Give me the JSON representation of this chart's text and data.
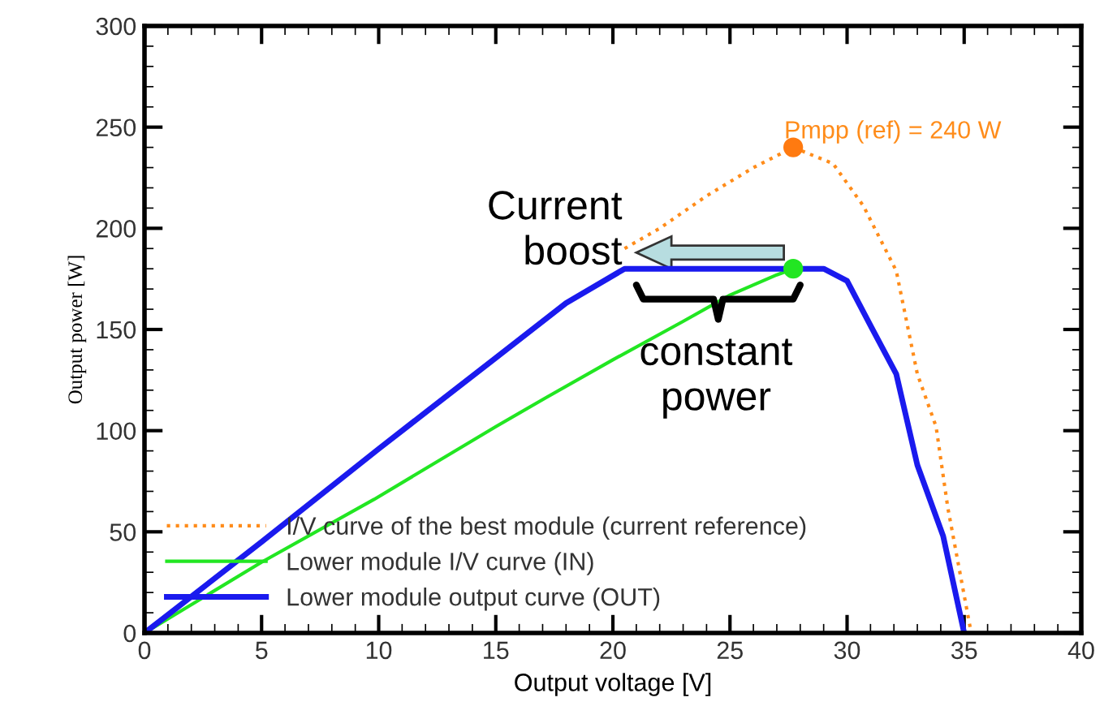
{
  "chart_data": {
    "type": "line",
    "xlabel": "Output voltage [V]",
    "ylabel": "Output power [W]",
    "xlim": [
      0,
      40
    ],
    "xticks": [
      0,
      5,
      10,
      15,
      20,
      25,
      30,
      35,
      40
    ],
    "ylim": [
      0,
      300
    ],
    "yticks": [
      0,
      50,
      100,
      150,
      200,
      250,
      300
    ],
    "grid": false,
    "legend": "bottom left",
    "marker": "none",
    "series": [
      {
        "name": "I/V curve of the best module (current reference)",
        "color": "#ff8c1a",
        "line_style": "dotted",
        "x": [
          20.5,
          22,
          24,
          26,
          27.7,
          29.4,
          30.7,
          32.1,
          33,
          33.8,
          34.3,
          35.3
        ],
        "values": [
          190,
          200,
          216,
          230,
          240,
          232,
          211,
          179,
          128,
          102,
          62,
          0
        ]
      },
      {
        "name": "Lower module I/V curve (IN)",
        "color": "#22e622",
        "line_style": "solid",
        "x": [
          0,
          5,
          9.8,
          15,
          17.1,
          20,
          23,
          25,
          27,
          27.7
        ],
        "values": [
          0,
          35,
          66,
          102,
          116,
          135,
          154,
          167,
          177,
          180
        ]
      },
      {
        "name": "Lower module output curve (OUT)",
        "color": "#1a1aee",
        "line_style": "solid",
        "x": [
          0,
          5,
          10,
          15,
          18,
          20.5,
          25,
          29,
          30,
          31,
          32.1,
          33,
          34.1,
          35
        ],
        "values": [
          0,
          45,
          91,
          136,
          163,
          180,
          180,
          180,
          174,
          152,
          128,
          83,
          48,
          0
        ]
      },
      {
        "type": "scatter",
        "marker": "circle",
        "color": "#ff7a10",
        "x": [
          27.7
        ],
        "values": [
          240
        ]
      },
      {
        "type": "scatter",
        "marker": "circle",
        "color": "#22e622",
        "x": [
          27.7
        ],
        "values": [
          180
        ]
      }
    ],
    "annotations": [
      {
        "text": "Pmpp (ref) = 240 W",
        "x": 27.7,
        "y": 240
      },
      {
        "text": "Current\nboost",
        "x": 21,
        "y": 188
      },
      "constant\npower"
    ]
  }
}
